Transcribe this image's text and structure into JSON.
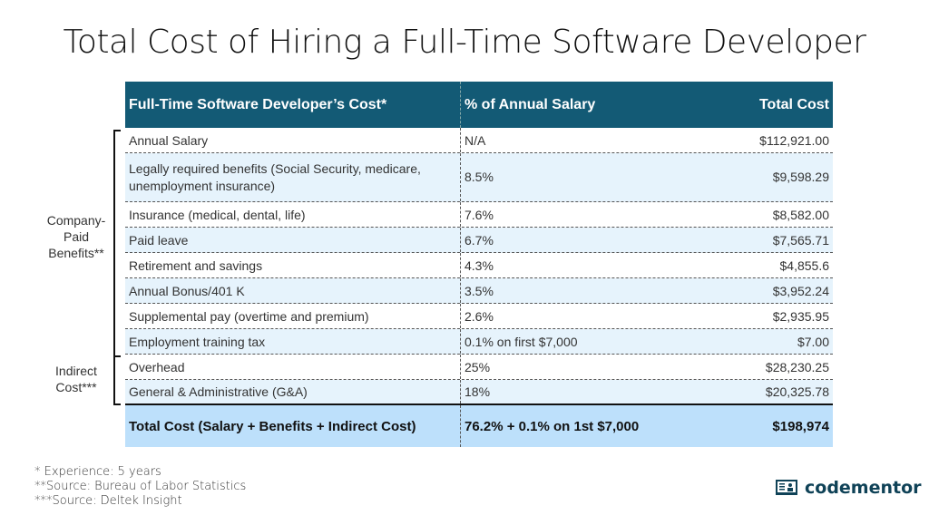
{
  "title": "Total Cost of Hiring a Full-Time Software Developer",
  "table": {
    "headers": [
      "Full-Time Software Developer’s Cost*",
      "% of Annual Salary",
      "Total Cost"
    ],
    "rows": [
      [
        "Annual Salary",
        "N/A",
        "$112,921.00"
      ],
      [
        "Legally required benefits (Social Security, medicare, unemployment insurance)",
        "8.5%",
        "$9,598.29"
      ],
      [
        "Insurance (medical, dental, life)",
        "7.6%",
        "$8,582.00"
      ],
      [
        "Paid leave",
        "6.7%",
        "$7,565.71"
      ],
      [
        "Retirement and savings",
        "4.3%",
        "$4,855.6"
      ],
      [
        "Annual Bonus/401 K",
        "3.5%",
        "$3,952.24"
      ],
      [
        "Supplemental pay (overtime and premium)",
        "2.6%",
        "$2,935.95"
      ],
      [
        "Employment training tax",
        "0.1% on first $7,000",
        "$7.00"
      ],
      [
        "Overhead",
        "25%",
        "$28,230.25"
      ],
      [
        "General & Administrative (G&A)",
        "18%",
        "$20,325.78"
      ]
    ],
    "total": [
      "Total Cost (Salary + Benefits + Indirect Cost)",
      "76.2% + 0.1% on 1st $7,000",
      "$198,974"
    ]
  },
  "groups": {
    "company": "Company-Paid Benefits**",
    "indirect": "Indirect Cost***"
  },
  "notes": [
    "* Experience: 5 years",
    "**Source: Bureau of Labor Statistics",
    "***Source: Deltek Insight"
  ],
  "logo": {
    "text": "codementor",
    "icon": "mentor-board-icon"
  },
  "colors": {
    "header": "#135a75",
    "row_alt": "#e6f3fc",
    "total": "#bde0fb",
    "brand": "#0f4257"
  }
}
